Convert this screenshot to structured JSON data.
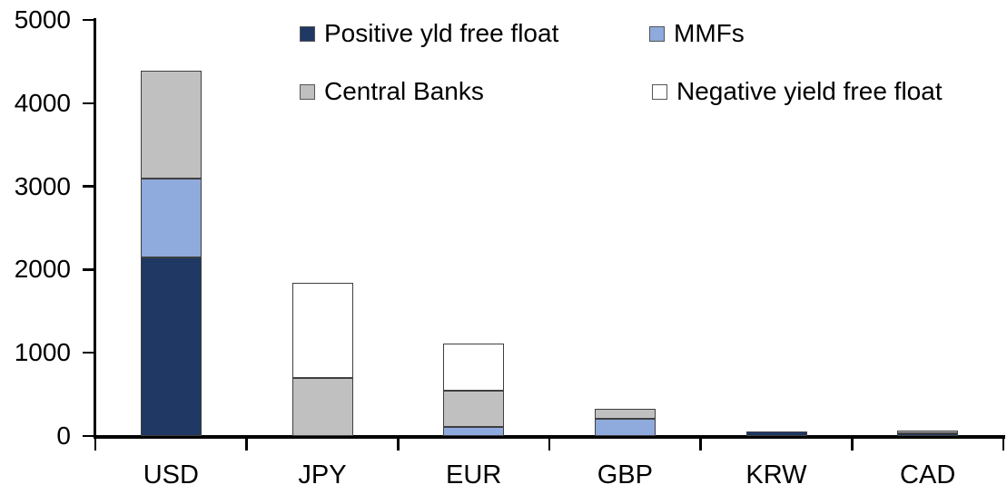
{
  "chart_data": {
    "type": "bar",
    "stacked": true,
    "title": "",
    "xlabel": "",
    "ylabel": "",
    "categories": [
      "USD",
      "JPY",
      "EUR",
      "GBP",
      "KRW",
      "CAD"
    ],
    "series": [
      {
        "name": "Positive yld free float",
        "color": "#1F3864",
        "values": [
          2150,
          0,
          0,
          0,
          50,
          30
        ]
      },
      {
        "name": "MMFs",
        "color": "#8FAADC",
        "values": [
          945,
          0,
          105,
          210,
          0,
          0
        ]
      },
      {
        "name": "Central Banks",
        "color": "#C0C0C0",
        "values": [
          1290,
          700,
          435,
          120,
          0,
          35
        ]
      },
      {
        "name": "Negative yield free float",
        "color": "#FFFFFF",
        "values": [
          0,
          1140,
          570,
          0,
          0,
          0
        ]
      }
    ],
    "totals": [
      4385,
      1840,
      1110,
      330,
      50,
      65
    ],
    "ylim": [
      0,
      5000
    ],
    "yticks": [
      0,
      1000,
      2000,
      3000,
      4000,
      5000
    ],
    "grid": false,
    "legend_position": "top",
    "axis_color": "#000000",
    "segment_border_color": "#3f3f3f"
  }
}
